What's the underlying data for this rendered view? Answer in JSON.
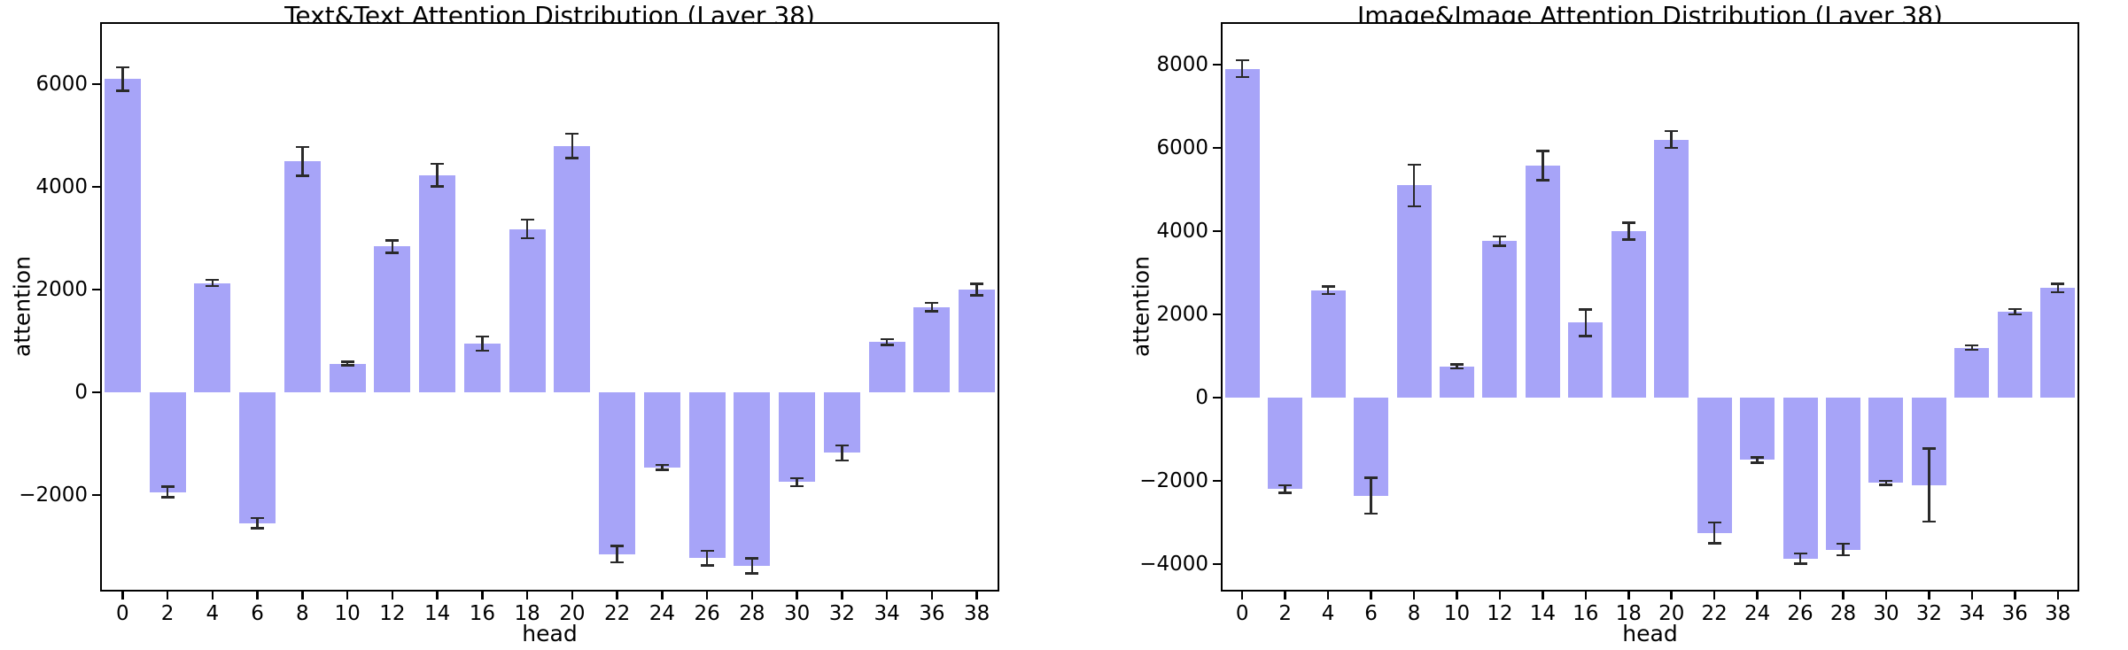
{
  "figure": {
    "background": "#ffffff",
    "axis_color": "#000000",
    "text_color": "#000000"
  },
  "chart_data": [
    {
      "type": "bar",
      "title": "Text&Text Attention Distribution (Layer 38)",
      "xlabel": "head",
      "ylabel": "attention",
      "bar_color": "#a7a4f8",
      "error_color": "#2a2a2a",
      "categories": [
        0,
        2,
        4,
        6,
        8,
        10,
        12,
        14,
        16,
        18,
        20,
        22,
        24,
        26,
        28,
        30,
        32,
        34,
        36,
        38
      ],
      "values": [
        6100,
        -1940,
        2130,
        -2550,
        4500,
        560,
        2840,
        4230,
        950,
        3180,
        4800,
        -3150,
        -1460,
        -3230,
        -3380,
        -1750,
        -1180,
        980,
        1660,
        2000
      ],
      "errors": [
        230,
        100,
        60,
        100,
        280,
        35,
        120,
        220,
        140,
        180,
        240,
        160,
        50,
        145,
        145,
        80,
        150,
        55,
        80,
        110
      ],
      "yticks": [
        -2000,
        0,
        2000,
        4000,
        6000
      ],
      "ylim": [
        -3880,
        7210
      ],
      "grid": "off",
      "legend": "none"
    },
    {
      "type": "bar",
      "title": "Image&Image Attention Distribution (Layer 38)",
      "xlabel": "head",
      "ylabel": "attention",
      "bar_color": "#a7a4f8",
      "error_color": "#2a2a2a",
      "categories": [
        0,
        2,
        4,
        6,
        8,
        10,
        12,
        14,
        16,
        18,
        20,
        22,
        24,
        26,
        28,
        30,
        32,
        34,
        36,
        38
      ],
      "values": [
        7900,
        -2200,
        2580,
        -2360,
        5100,
        750,
        3760,
        5570,
        1800,
        4000,
        6200,
        -3250,
        -1500,
        -3870,
        -3650,
        -2050,
        -2100,
        1200,
        2060,
        2630
      ],
      "errors": [
        200,
        90,
        90,
        430,
        500,
        45,
        110,
        350,
        320,
        200,
        200,
        250,
        60,
        120,
        135,
        45,
        880,
        55,
        65,
        100
      ],
      "yticks": [
        -4000,
        -2000,
        0,
        2000,
        4000,
        6000,
        8000
      ],
      "ylim": [
        -4660,
        9020
      ],
      "grid": "off",
      "legend": "none"
    }
  ]
}
